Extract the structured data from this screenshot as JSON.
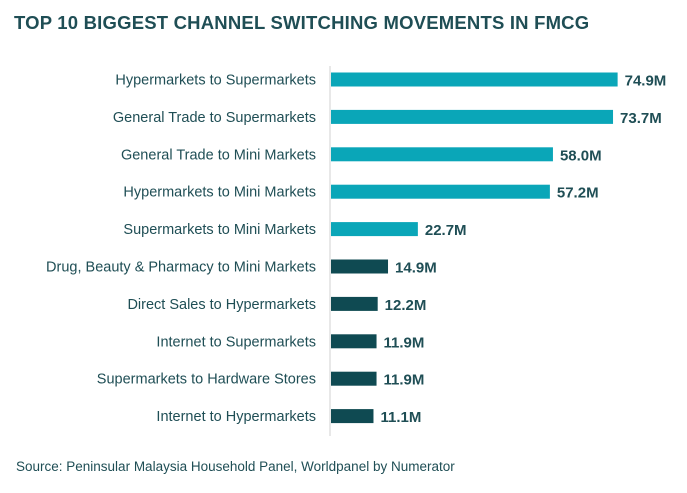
{
  "chart_data": {
    "type": "bar",
    "orientation": "horizontal",
    "title": "TOP 10 BIGGEST CHANNEL SWITCHING MOVEMENTS IN FMCG",
    "categories": [
      "Hypermarkets to Supermarkets",
      "General Trade to Supermarkets",
      "General Trade to Mini Markets",
      "Hypermarkets to Mini Markets",
      "Supermarkets to Mini Markets",
      "Drug, Beauty & Pharmacy to Mini Markets",
      "Direct Sales to Hypermarkets",
      "Internet to Supermarkets",
      "Supermarkets to Hardware Stores",
      "Internet to Hypermarkets"
    ],
    "values": [
      74.9,
      73.7,
      58.0,
      57.2,
      22.7,
      14.9,
      12.2,
      11.9,
      11.9,
      11.1
    ],
    "value_labels": [
      "74.9M",
      "73.7M",
      "58.0M",
      "57.2M",
      "22.7M",
      "14.9M",
      "12.2M",
      "11.9M",
      "11.9M",
      "11.1M"
    ],
    "bar_colors": [
      "#0aa6b8",
      "#0aa6b8",
      "#0aa6b8",
      "#0aa6b8",
      "#0aa6b8",
      "#0f4a52",
      "#0f4a52",
      "#0f4a52",
      "#0f4a52",
      "#0f4a52"
    ],
    "xlim": [
      0,
      75
    ],
    "grid": false,
    "legend": "none"
  },
  "source": "Source: Peninsular Malaysia Household Panel, Worldpanel by Numerator"
}
